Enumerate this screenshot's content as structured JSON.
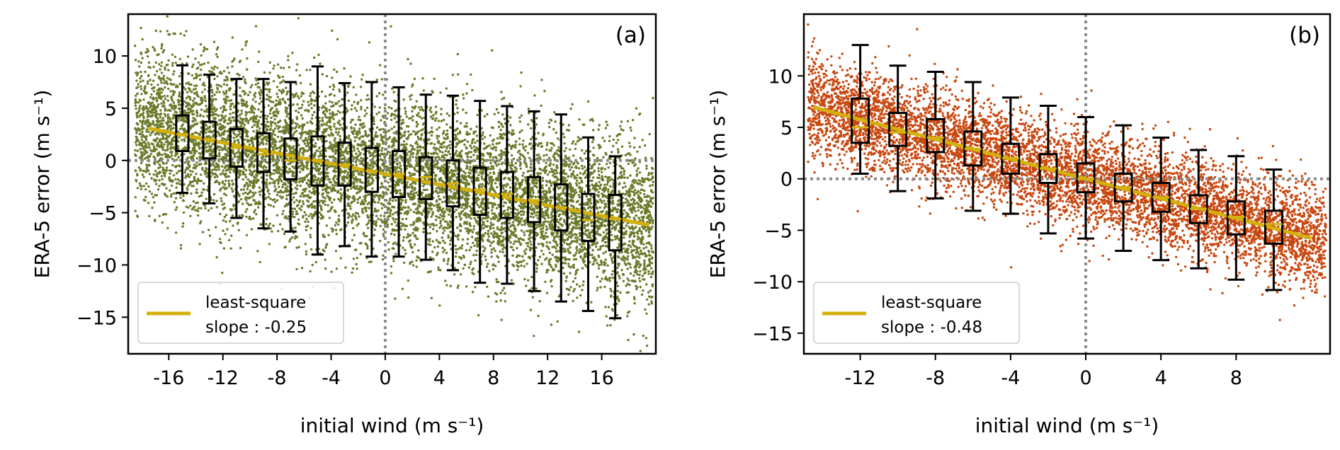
{
  "colors": {
    "scatter_a": "#6b7a2a",
    "scatter_b": "#c8470f",
    "fit_line": "#d4b00c",
    "box": "#000000",
    "reference_line": "#8c8c8c"
  },
  "chart_data": [
    {
      "panel_label": "(a)",
      "type": "scatter",
      "xlabel": "initial wind (m s⁻¹)",
      "ylabel": "ERA-5 error (m s⁻¹)",
      "xlim": [
        -19.0,
        20.0
      ],
      "ylim": [
        -18.5,
        14.0
      ],
      "xticks": [
        -16,
        -12,
        -8,
        -4,
        0,
        4,
        8,
        12,
        16
      ],
      "xtick_labels": [
        "-16",
        "-12",
        "-8",
        "-4",
        "0",
        "4",
        "8",
        "12",
        "16"
      ],
      "yticks": [
        10,
        5,
        0,
        -5,
        -10,
        -15
      ],
      "ytick_labels": [
        "10",
        "5",
        "0",
        "−5",
        "−10",
        "−15"
      ],
      "reference_lines": {
        "x": 0,
        "y": 0
      },
      "grid": false,
      "legend_position": "lower-left",
      "fit": {
        "label_line1": "least-square",
        "label_line2": "slope : -0.25",
        "slope": -0.25,
        "x_range": [
          -17.5,
          19.5
        ],
        "y_at_x0": -1.3
      },
      "scatter_cloud": {
        "x_range": [
          -18.5,
          19.8
        ],
        "n_points": 9000,
        "spread": 3.8
      },
      "boxes": [
        {
          "x": -15,
          "whisker_low": -3.1,
          "q1": 0.9,
          "median": 2.5,
          "q3": 4.3,
          "whisker_high": 9.1
        },
        {
          "x": -13,
          "whisker_low": -4.1,
          "q1": 0.2,
          "median": 2.0,
          "q3": 3.7,
          "whisker_high": 8.2
        },
        {
          "x": -11,
          "whisker_low": -5.5,
          "q1": -0.6,
          "median": 1.2,
          "q3": 3.0,
          "whisker_high": 7.8
        },
        {
          "x": -9,
          "whisker_low": -6.5,
          "q1": -1.1,
          "median": 0.6,
          "q3": 2.6,
          "whisker_high": 7.8
        },
        {
          "x": -7,
          "whisker_low": -6.8,
          "q1": -1.8,
          "median": 0.0,
          "q3": 2.1,
          "whisker_high": 7.5
        },
        {
          "x": -5,
          "whisker_low": -9.0,
          "q1": -2.4,
          "median": 0.0,
          "q3": 2.3,
          "whisker_high": 9.0
        },
        {
          "x": -3,
          "whisker_low": -8.2,
          "q1": -2.4,
          "median": -0.4,
          "q3": 1.7,
          "whisker_high": 7.4
        },
        {
          "x": -1,
          "whisker_low": -9.2,
          "q1": -3.0,
          "median": -1.0,
          "q3": 1.2,
          "whisker_high": 7.5
        },
        {
          "x": 1,
          "whisker_low": -9.2,
          "q1": -3.5,
          "median": -1.3,
          "q3": 0.9,
          "whisker_high": 7.0
        },
        {
          "x": 3,
          "whisker_low": -9.5,
          "q1": -3.7,
          "median": -1.6,
          "q3": 0.3,
          "whisker_high": 6.3
        },
        {
          "x": 5,
          "whisker_low": -10.5,
          "q1": -4.4,
          "median": -2.2,
          "q3": 0.0,
          "whisker_high": 6.2
        },
        {
          "x": 7,
          "whisker_low": -11.7,
          "q1": -5.2,
          "median": -2.8,
          "q3": -0.7,
          "whisker_high": 5.7
        },
        {
          "x": 9,
          "whisker_low": -11.8,
          "q1": -5.5,
          "median": -3.2,
          "q3": -1.1,
          "whisker_high": 5.2
        },
        {
          "x": 11,
          "whisker_low": -12.5,
          "q1": -5.9,
          "median": -3.8,
          "q3": -1.6,
          "whisker_high": 4.7
        },
        {
          "x": 13,
          "whisker_low": -13.5,
          "q1": -6.7,
          "median": -4.5,
          "q3": -2.3,
          "whisker_high": 4.4
        },
        {
          "x": 15,
          "whisker_low": -14.4,
          "q1": -7.7,
          "median": -5.7,
          "q3": -3.2,
          "whisker_high": 2.2
        },
        {
          "x": 17,
          "whisker_low": -15.1,
          "q1": -8.6,
          "median": -5.6,
          "q3": -3.3,
          "whisker_high": 0.4
        }
      ]
    },
    {
      "panel_label": "(b)",
      "type": "scatter",
      "xlabel": "initial wind (m s⁻¹)",
      "ylabel": "ERA-5 error (m s⁻¹)",
      "xlim": [
        -15.0,
        13.0
      ],
      "ylim": [
        -17.0,
        16.0
      ],
      "xticks": [
        -12,
        -8,
        -4,
        0,
        4,
        8
      ],
      "xtick_labels": [
        "-12",
        "-8",
        "-4",
        "0",
        "4",
        "8"
      ],
      "yticks": [
        10,
        5,
        0,
        -5,
        -10,
        -15
      ],
      "yticks_labels_note": "",
      "ytick_labels": [
        "10",
        "5",
        "0",
        "−5",
        "−10",
        "−15"
      ],
      "reference_lines": {
        "x": 0,
        "y": 0
      },
      "grid": false,
      "legend_position": "lower-left",
      "fit": {
        "label_line1": "least-square",
        "label_line2": "slope : -0.48",
        "slope": -0.48,
        "x_range": [
          -14.5,
          12.0
        ],
        "y_at_x0": 0.0
      },
      "scatter_cloud": {
        "x_range": [
          -14.8,
          12.8
        ],
        "n_points": 7000,
        "spread": 2.4
      },
      "boxes": [
        {
          "x": -12,
          "whisker_low": 0.5,
          "q1": 3.5,
          "median": 5.0,
          "q3": 7.8,
          "whisker_high": 13.0
        },
        {
          "x": -10,
          "whisker_low": -1.2,
          "q1": 3.2,
          "median": 4.5,
          "q3": 6.4,
          "whisker_high": 11.0
        },
        {
          "x": -8,
          "whisker_low": -1.9,
          "q1": 2.6,
          "median": 4.0,
          "q3": 5.8,
          "whisker_high": 10.4
        },
        {
          "x": -6,
          "whisker_low": -3.1,
          "q1": 1.3,
          "median": 2.9,
          "q3": 4.6,
          "whisker_high": 9.4
        },
        {
          "x": -4,
          "whisker_low": -3.4,
          "q1": 0.5,
          "median": 2.0,
          "q3": 3.4,
          "whisker_high": 7.9
        },
        {
          "x": -2,
          "whisker_low": -5.3,
          "q1": -0.4,
          "median": 1.0,
          "q3": 2.4,
          "whisker_high": 7.1
        },
        {
          "x": 0,
          "whisker_low": -5.8,
          "q1": -1.3,
          "median": 0.0,
          "q3": 1.5,
          "whisker_high": 6.0
        },
        {
          "x": 2,
          "whisker_low": -7.0,
          "q1": -2.2,
          "median": -0.8,
          "q3": 0.5,
          "whisker_high": 5.2
        },
        {
          "x": 4,
          "whisker_low": -7.9,
          "q1": -3.2,
          "median": -1.8,
          "q3": -0.4,
          "whisker_high": 4.0
        },
        {
          "x": 6,
          "whisker_low": -8.7,
          "q1": -4.3,
          "median": -2.9,
          "q3": -1.6,
          "whisker_high": 2.8
        },
        {
          "x": 8,
          "whisker_low": -9.8,
          "q1": -5.4,
          "median": -3.7,
          "q3": -2.2,
          "whisker_high": 2.2
        },
        {
          "x": 10,
          "whisker_low": -10.8,
          "q1": -6.3,
          "median": -4.4,
          "q3": -3.1,
          "whisker_high": 0.9
        }
      ]
    }
  ]
}
